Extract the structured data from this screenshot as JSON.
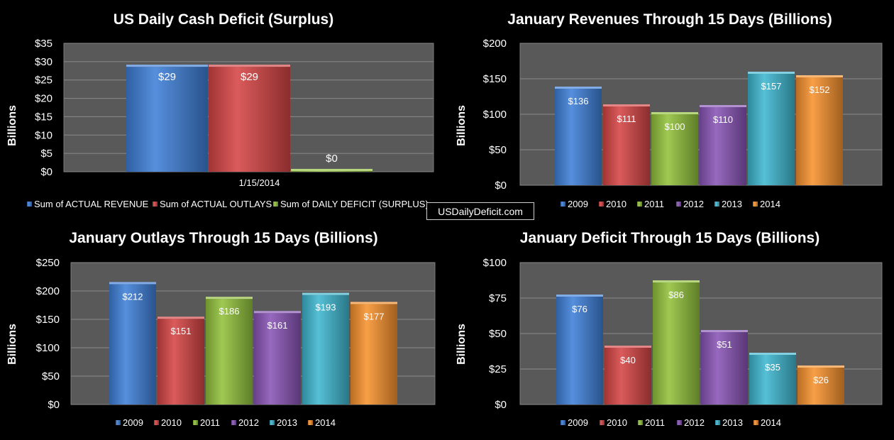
{
  "site_label": "USDailyDeficit.com",
  "colors": {
    "background": "#000000",
    "plot_area": "#595959",
    "blue": "#3f80d8",
    "red": "#d64545",
    "green": "#92c23c",
    "purple": "#8955b6",
    "teal": "#3fb7d0",
    "orange": "#f7922e"
  },
  "chart_data": [
    {
      "type": "bar",
      "title": "US Daily Cash Deficit (Surplus)",
      "ylabel": "Billions",
      "xlabel": "",
      "ylim": [
        0,
        35
      ],
      "yticks": [
        "$0",
        "$5",
        "$10",
        "$15",
        "$20",
        "$25",
        "$30",
        "$35"
      ],
      "categories": [
        "1/15/2014"
      ],
      "series": [
        {
          "name": "Sum of ACTUAL REVENUE",
          "values": [
            28.6
          ],
          "label": "$29",
          "color": "#3f80d8"
        },
        {
          "name": "Sum of ACTUAL OUTLAYS",
          "values": [
            28.6
          ],
          "label": "$29",
          "color": "#d64545"
        },
        {
          "name": "Sum of DAILY DEFICIT (SURPLUS)",
          "values": [
            0.2
          ],
          "label": "$0",
          "color": "#92c23c"
        }
      ],
      "legend": "bottom",
      "grid": true
    },
    {
      "type": "bar",
      "title": "January Revenues Through 15 Days (Billions)",
      "ylabel": "Billions",
      "xlabel": "",
      "ylim": [
        0,
        200
      ],
      "yticks": [
        "$0",
        "$50",
        "$100",
        "$150",
        "$200"
      ],
      "categories": [
        "2009",
        "2010",
        "2011",
        "2012",
        "2013",
        "2014"
      ],
      "values": [
        136,
        111,
        100,
        110,
        157,
        152
      ],
      "labels": [
        "$136",
        "$111",
        "$100",
        "$110",
        "$157",
        "$152"
      ],
      "legend": "bottom",
      "grid": true
    },
    {
      "type": "bar",
      "title": "January Outlays Through 15 Days (Billions)",
      "ylabel": "Billions",
      "xlabel": "",
      "ylim": [
        0,
        250
      ],
      "yticks": [
        "$0",
        "$50",
        "$100",
        "$150",
        "$200",
        "$250"
      ],
      "categories": [
        "2009",
        "2010",
        "2011",
        "2012",
        "2013",
        "2014"
      ],
      "values": [
        212,
        151,
        186,
        161,
        193,
        177
      ],
      "labels": [
        "$212",
        "$151",
        "$186",
        "$161",
        "$193",
        "$177"
      ],
      "legend": "bottom",
      "grid": true
    },
    {
      "type": "bar",
      "title": "January Deficit Through 15 Days (Billions)",
      "ylabel": "Billions",
      "xlabel": "",
      "ylim": [
        0,
        100
      ],
      "yticks": [
        "$0",
        "$25",
        "$50",
        "$75",
        "$100"
      ],
      "categories": [
        "2009",
        "2010",
        "2011",
        "2012",
        "2013",
        "2014"
      ],
      "values": [
        76,
        40,
        86,
        51,
        35,
        26
      ],
      "labels": [
        "$76",
        "$40",
        "$86",
        "$51",
        "$35",
        "$26"
      ],
      "legend": "bottom",
      "grid": true
    }
  ]
}
